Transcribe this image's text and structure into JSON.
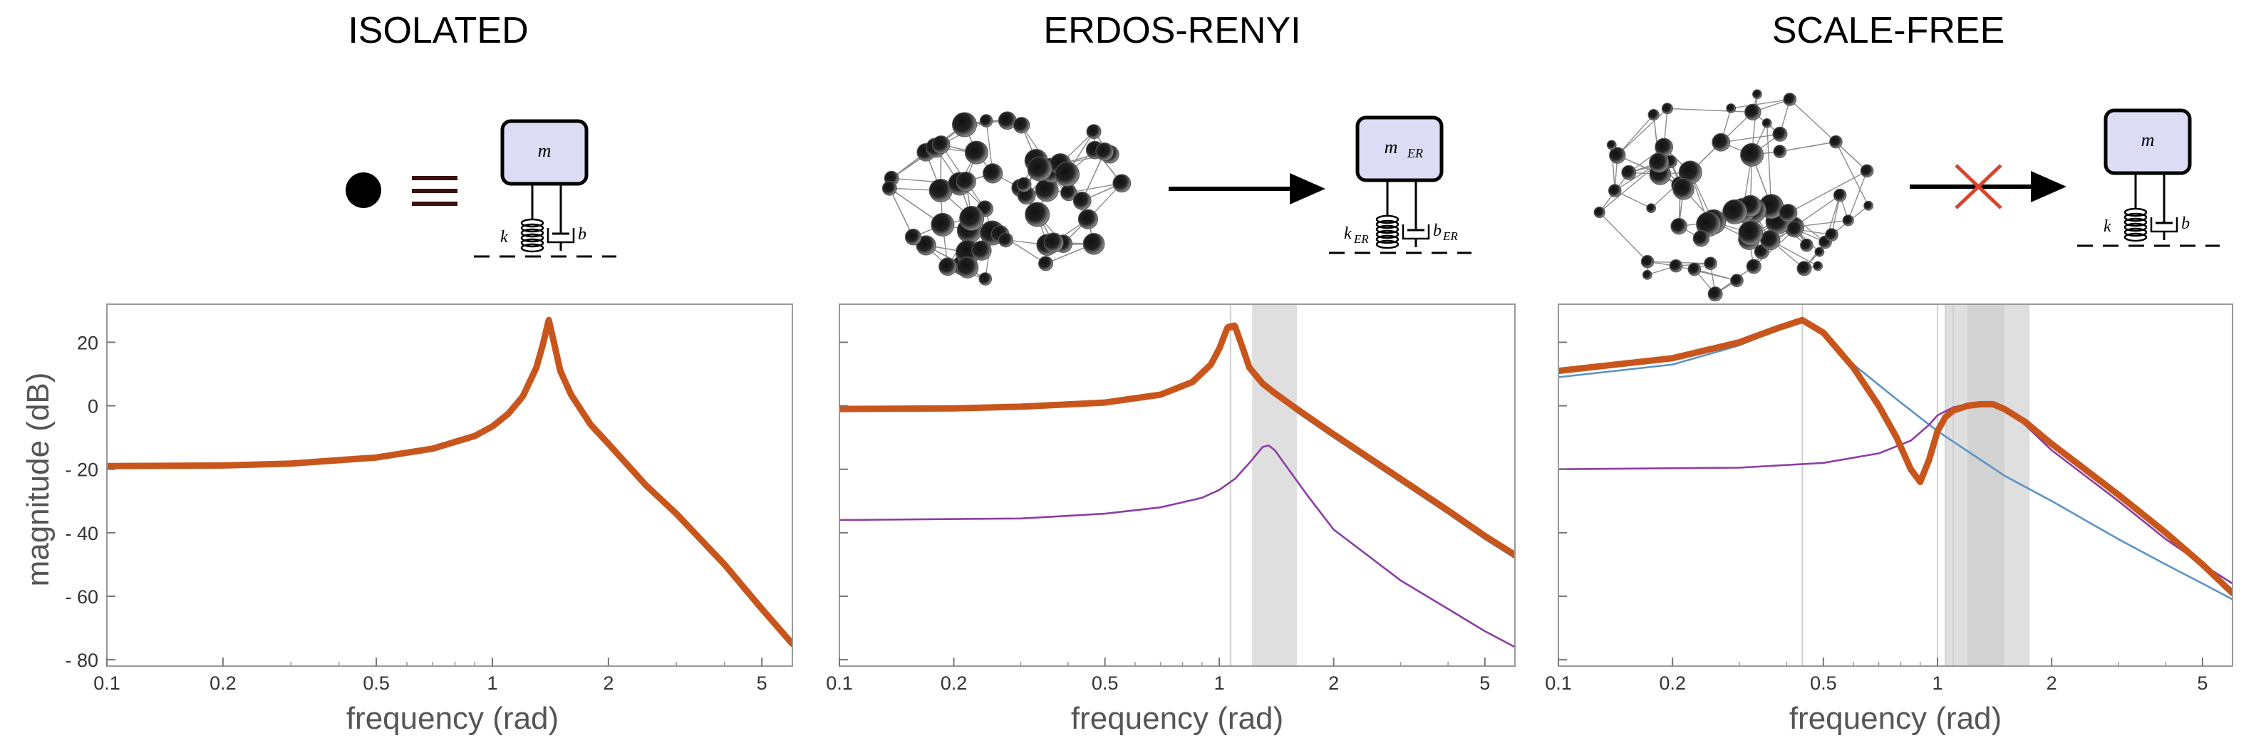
{
  "titles": [
    "ISOLATED",
    "ERDOS-RENYI",
    "SCALE-FREE"
  ],
  "diagrams": {
    "isolated": {
      "mass": "m",
      "spring": "k",
      "damper": "b"
    },
    "erdos_renyi": {
      "mass": "m",
      "mass_sub": "ER",
      "spring": "k",
      "spring_sub": "ER",
      "damper": "b",
      "damper_sub": "ER"
    },
    "scale_free": {
      "mass": "m",
      "spring": "k",
      "damper": "b"
    }
  },
  "colors": {
    "thick": "#c8561c",
    "purple": "#8b3ea6",
    "blue": "#5b93c4",
    "band": "#c4c4c4",
    "mass_fill": "#dcdcf5"
  },
  "chart_data": [
    {
      "type": "line",
      "title": "ISOLATED",
      "xlabel": "frequency (rad)",
      "ylabel": "magnitude (dB)",
      "xscale": "log",
      "xlim": [
        0.1,
        6
      ],
      "ylim": [
        -82,
        32
      ],
      "xticks": [
        0.1,
        0.2,
        0.5,
        1,
        2,
        5
      ],
      "xtick_labels": [
        "0.1",
        "0.2",
        "0.5",
        "1",
        "2",
        "5"
      ],
      "yticks": [
        20,
        0,
        -20,
        -40,
        -60,
        -80
      ],
      "ytick_labels": [
        "20",
        "0",
        "- 20",
        "- 40",
        "- 60",
        "- 80"
      ],
      "series": [
        {
          "style": "thick",
          "color": "#c8561c",
          "x": [
            0.1,
            0.2,
            0.3,
            0.5,
            0.7,
            0.9,
            1.0,
            1.1,
            1.2,
            1.3,
            1.35,
            1.4,
            1.45,
            1.5,
            1.6,
            1.8,
            2.0,
            2.5,
            3.0,
            4.0,
            5.0,
            6.0
          ],
          "y": [
            -19,
            -18.8,
            -18.2,
            -16.3,
            -13.5,
            -9.5,
            -6.5,
            -2.5,
            3,
            12,
            19,
            27,
            19,
            11,
            3.5,
            -6,
            -12,
            -25,
            -34,
            -50,
            -64,
            -75
          ]
        }
      ]
    },
    {
      "type": "line",
      "title": "ERDOS-RENYI",
      "xlabel": "frequency (rad)",
      "xscale": "log",
      "xlim": [
        0.1,
        6
      ],
      "ylim": [
        -82,
        32
      ],
      "xticks": [
        0.1,
        0.2,
        0.5,
        1,
        2,
        5
      ],
      "xtick_labels": [
        "0.1",
        "0.2",
        "0.5",
        "1",
        "2",
        "5"
      ],
      "yticks": [
        20,
        0,
        -20,
        -40,
        -60,
        -80
      ],
      "bands": [
        [
          1.22,
          1.6
        ]
      ],
      "vlines": [
        1.07
      ],
      "series": [
        {
          "style": "thick",
          "color": "#c8561c",
          "x": [
            0.1,
            0.2,
            0.3,
            0.5,
            0.7,
            0.85,
            0.95,
            1.0,
            1.05,
            1.1,
            1.15,
            1.2,
            1.3,
            1.4,
            1.6,
            2.0,
            3.0,
            4.0,
            5.0,
            6.0
          ],
          "y": [
            -1,
            -0.8,
            -0.3,
            1,
            3.5,
            7.5,
            13,
            18,
            24.5,
            25,
            18.5,
            12,
            7,
            4,
            -1,
            -9,
            -23,
            -33,
            -41,
            -47
          ]
        },
        {
          "style": "thin",
          "color": "#c8561c",
          "x": [
            0.95,
            1.0,
            1.05,
            1.1,
            1.15,
            1.2,
            1.3
          ],
          "y": [
            13.5,
            19,
            25.5,
            26,
            19,
            12,
            6.5
          ]
        },
        {
          "style": "thin",
          "color": "#5b93c4",
          "x": [
            1.2,
            1.4,
            1.6,
            2.0,
            3.0,
            4.0,
            5.0,
            6.0
          ],
          "y": [
            11,
            3.5,
            -2,
            -10,
            -24,
            -34,
            -42,
            -48
          ]
        },
        {
          "style": "thin",
          "color": "#8b3ea6",
          "x": [
            0.1,
            0.3,
            0.5,
            0.7,
            0.9,
            1.0,
            1.1,
            1.2,
            1.3,
            1.35,
            1.4,
            1.5,
            1.7,
            2.0,
            3.0,
            4.0,
            5.0,
            6.0
          ],
          "y": [
            -36,
            -35.5,
            -34,
            -32,
            -29,
            -26.5,
            -23,
            -18,
            -13,
            -12.5,
            -14,
            -19,
            -28,
            -39,
            -55,
            -64,
            -71,
            -76
          ]
        }
      ]
    },
    {
      "type": "line",
      "title": "SCALE-FREE",
      "xlabel": "frequency (rad)",
      "xscale": "log",
      "xlim": [
        0.1,
        6
      ],
      "ylim": [
        -82,
        32
      ],
      "xticks": [
        0.1,
        0.2,
        0.5,
        1,
        2,
        5
      ],
      "xtick_labels": [
        "0.1",
        "0.2",
        "0.5",
        "1",
        "2",
        "5"
      ],
      "yticks": [
        20,
        0,
        -20,
        -40,
        -60,
        -80
      ],
      "bands": [
        [
          1.05,
          1.75
        ],
        [
          1.2,
          1.5
        ]
      ],
      "vlines": [
        0.44,
        1.0,
        1.05,
        1.1
      ],
      "series": [
        {
          "style": "thin",
          "color": "#5b93c4",
          "x": [
            0.1,
            0.2,
            0.3,
            0.38,
            0.44,
            0.5,
            0.6,
            0.8,
            1.0,
            1.5,
            2.0,
            3.0,
            4.0,
            5.0,
            6.0
          ],
          "y": [
            9,
            13,
            19,
            24,
            27,
            23,
            13,
            1,
            -8,
            -22,
            -30,
            -42,
            -50,
            -56,
            -61
          ]
        },
        {
          "style": "thin",
          "color": "#8b3ea6",
          "x": [
            0.1,
            0.3,
            0.5,
            0.7,
            0.85,
            0.95,
            1.0,
            1.1,
            1.2,
            1.3,
            1.4,
            1.5,
            1.7,
            2.0,
            3.0,
            4.0,
            5.0,
            6.0
          ],
          "y": [
            -20,
            -19.5,
            -18,
            -15,
            -11,
            -6,
            -3,
            -0.5,
            0.5,
            1,
            0.5,
            -1,
            -6,
            -14,
            -30,
            -42,
            -50,
            -56
          ]
        },
        {
          "style": "thick",
          "color": "#c8561c",
          "x": [
            0.1,
            0.2,
            0.3,
            0.38,
            0.44,
            0.5,
            0.6,
            0.7,
            0.78,
            0.85,
            0.9,
            0.95,
            1.0,
            1.05,
            1.1,
            1.2,
            1.3,
            1.4,
            1.5,
            1.7,
            2.0,
            3.0,
            4.0,
            5.0,
            6.0
          ],
          "y": [
            11,
            15,
            20,
            24.5,
            27,
            23,
            12,
            0,
            -10,
            -20,
            -24,
            -17,
            -8,
            -3.5,
            -1.5,
            0,
            0.5,
            0.5,
            -1,
            -5,
            -12,
            -28,
            -40,
            -50,
            -59
          ]
        }
      ]
    }
  ]
}
